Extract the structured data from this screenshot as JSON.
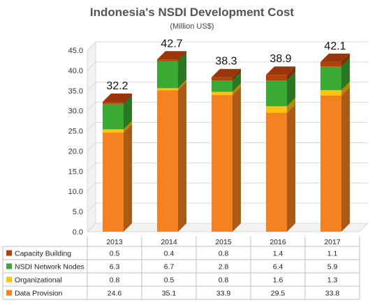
{
  "chart_data": {
    "type": "bar",
    "stacked": true,
    "title": "Indonesia's NSDI Development Cost",
    "subtitle": "(Million US$)",
    "categories": [
      "2013",
      "2014",
      "2015",
      "2016",
      "2017"
    ],
    "ylim": [
      0,
      45
    ],
    "y_ticks": [
      "0.0",
      "5.0",
      "10.0",
      "15.0",
      "20.0",
      "25.0",
      "30.0",
      "35.0",
      "40.0",
      "45.0"
    ],
    "grid": true,
    "legend": "data-table-below",
    "series": [
      {
        "name": "Data Provision",
        "color": "#f58220",
        "values": [
          24.6,
          35.1,
          33.9,
          29.5,
          33.8
        ],
        "display": [
          "24.6",
          "35.1",
          "33.9",
          "29.5",
          "33.8"
        ]
      },
      {
        "name": "Organizational",
        "color": "#ffc20e",
        "values": [
          0.8,
          0.5,
          0.8,
          1.6,
          1.3
        ],
        "display": [
          "0.8",
          "0.5",
          "0.8",
          "1.6",
          "1.3"
        ]
      },
      {
        "name": "NSDI Network Nodes",
        "color": "#3aaa35",
        "values": [
          6.3,
          6.7,
          2.8,
          6.4,
          5.9
        ],
        "display": [
          "6.3",
          "6.7",
          "2.8",
          "6.4",
          "5.9"
        ]
      },
      {
        "name": "Capacity Building",
        "color": "#b5400a",
        "values": [
          0.5,
          0.4,
          0.8,
          1.4,
          1.1
        ],
        "display": [
          "0.5",
          "0.4",
          "0.8",
          "1.4",
          "1.1"
        ]
      }
    ],
    "totals": [
      "32.2",
      "42.7",
      "38.3",
      "38.9",
      "42.1"
    ]
  }
}
